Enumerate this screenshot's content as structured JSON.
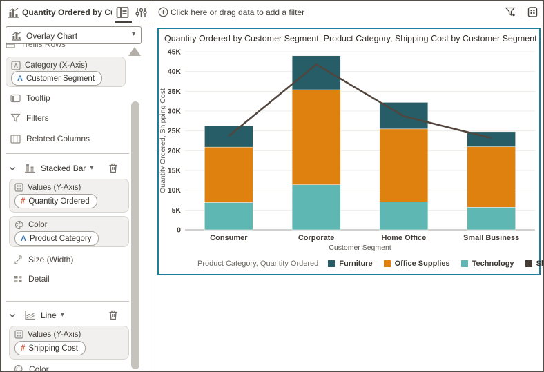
{
  "panel_header": {
    "title": "Quantity Ordered by Custom..."
  },
  "filter_bar": {
    "prompt": "Click here or drag data to add a filter"
  },
  "grammar_panel": {
    "chart_type_select": "Overlay Chart",
    "trellis_rows_label": "Trellis Rows",
    "category_zone": {
      "label": "Category (X-Axis)",
      "pill": "Customer Segment"
    },
    "tooltip_label": "Tooltip",
    "filters_label": "Filters",
    "related_columns_label": "Related Columns",
    "stacked_bar_section": {
      "title": "Stacked Bar",
      "values_zone": {
        "label": "Values (Y-Axis)",
        "pill": "Quantity Ordered"
      },
      "color_zone": {
        "label": "Color",
        "pill": "Product Category"
      },
      "size_label": "Size (Width)",
      "detail_label": "Detail"
    },
    "line_section": {
      "title": "Line",
      "values_zone": {
        "label": "Values (Y-Axis)",
        "pill": "Shipping Cost"
      },
      "color_label": "Color"
    }
  },
  "chart_data": {
    "type": "combo",
    "title": "Quantity Ordered by Customer Segment, Product Category, Shipping Cost by Customer Segment",
    "categories": [
      "Consumer",
      "Corporate",
      "Home Office",
      "Small Business"
    ],
    "series": [
      {
        "name": "Technology",
        "kind": "bar",
        "color": "#5fb7b4",
        "values": [
          6900,
          11400,
          7100,
          5700
        ]
      },
      {
        "name": "Office Supplies",
        "kind": "bar",
        "color": "#de810f",
        "values": [
          14000,
          24000,
          18400,
          15300
        ]
      },
      {
        "name": "Furniture",
        "kind": "bar",
        "color": "#265d66",
        "values": [
          5400,
          8600,
          6700,
          3800
        ]
      },
      {
        "name": "Shipping Cost",
        "kind": "line",
        "color": "#51453d",
        "values": [
          23700,
          41800,
          28700,
          23200
        ]
      }
    ],
    "xlabel": "Customer Segment",
    "ylabel": "Quantity Ordered, Shipping Cost",
    "ylim": [
      0,
      45000
    ],
    "ytick_step": 5000,
    "grid": true,
    "legend": {
      "position": "bottom",
      "title": "Product Category, Quantity Ordered",
      "entries": [
        {
          "label": "Furniture",
          "color": "#265d66"
        },
        {
          "label": "Office Supplies",
          "color": "#de810f"
        },
        {
          "label": "Technology",
          "color": "#5fb7b4"
        },
        {
          "label": "Shipping Cost",
          "color": "#463c36"
        }
      ]
    }
  }
}
